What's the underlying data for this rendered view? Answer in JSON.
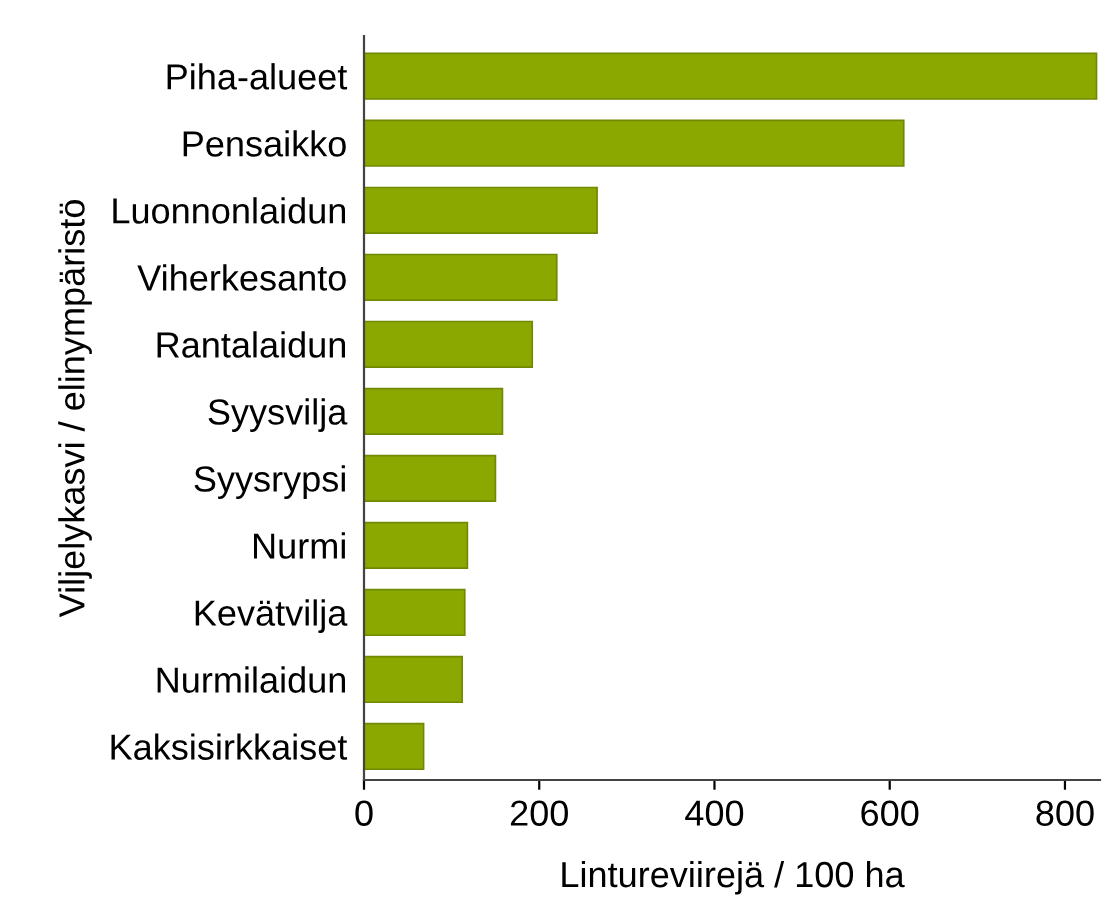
{
  "chart_data": {
    "type": "bar",
    "orientation": "horizontal",
    "categories": [
      "Piha-alueet",
      "Pensaikko",
      "Luonnonlaidun",
      "Viherkesanto",
      "Rantalaidun",
      "Syysvilja",
      "Syysrypsi",
      "Nurmi",
      "Kevätvilja",
      "Nurmilaidun",
      "Kaksisirkkaiset"
    ],
    "values": [
      836,
      616,
      266,
      220,
      192,
      158,
      150,
      118,
      115,
      112,
      68
    ],
    "color": "#8aa800",
    "xlabel": "Lintureviirejä / 100 ha",
    "ylabel": "Viljelykasvi / elinympäristö",
    "xlim": [
      0,
      840
    ],
    "xticks": [
      0,
      200,
      400,
      600,
      800
    ],
    "grid": false,
    "legend": false
  }
}
